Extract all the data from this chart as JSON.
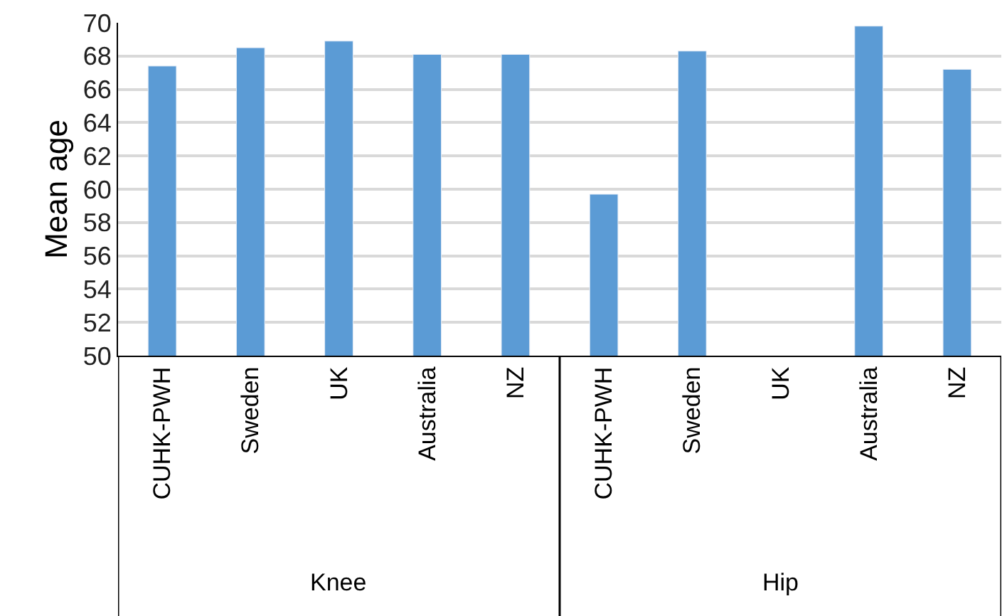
{
  "chart_data": {
    "type": "bar",
    "ylabel": "Mean age",
    "categories": [
      "CUHK-PWH",
      "Sweden",
      "UK",
      "Australia",
      "NZ",
      "CUHK-PWH",
      "Sweden",
      "UK",
      "Australia",
      "NZ"
    ],
    "values": [
      67.4,
      68.5,
      68.9,
      68.1,
      68.1,
      59.7,
      68.3,
      null,
      69.8,
      67.2
    ],
    "color": "#5b9bd5",
    "ylim": [
      50,
      70
    ],
    "yticks": [
      50,
      52,
      54,
      56,
      58,
      60,
      62,
      64,
      66,
      68,
      70
    ],
    "grid": "y",
    "legend": false,
    "annotations": [
      "Knee",
      "Hip"
    ]
  }
}
